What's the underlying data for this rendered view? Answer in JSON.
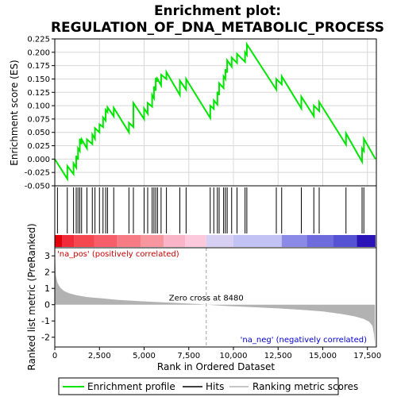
{
  "chart_data": {
    "type": "line",
    "title": "Enrichment plot:\nREGULATION_OF_DNA_METABOLIC_PROCESS",
    "title_lines": [
      "Enrichment plot:",
      "REGULATION_OF_DNA_METABOLIC_PROCESS"
    ],
    "xlabel": "Rank in Ordered Dataset",
    "ylabel_top": "Enrichment score (ES)",
    "ylabel_bottom": "Ranked list metric (PreRanked)",
    "xlim": [
      0,
      18000
    ],
    "x_ticks": [
      0,
      2500,
      5000,
      7500,
      10000,
      12500,
      15000,
      17500
    ],
    "x_tick_labels": [
      "0",
      "2,500",
      "5,000",
      "7,500",
      "10,000",
      "12,500",
      "15,000",
      "17,500"
    ],
    "es_ylim": [
      -0.05,
      0.225
    ],
    "es_ticks": [
      -0.05,
      -0.025,
      0.0,
      0.025,
      0.05,
      0.075,
      0.1,
      0.125,
      0.15,
      0.175,
      0.2,
      0.225
    ],
    "es_tick_labels": [
      "-0.050",
      "-0.025",
      "0.000",
      "0.025",
      "0.050",
      "0.075",
      "0.100",
      "0.125",
      "0.150",
      "0.175",
      "0.200",
      "0.225"
    ],
    "metric_ylim": [
      -2.6,
      3.5
    ],
    "metric_ticks": [
      -2,
      -1,
      0,
      1,
      2,
      3
    ],
    "metric_tick_labels": [
      "-2",
      "-1",
      "0",
      "1",
      "2",
      "3"
    ],
    "zero_cross_rank": 8480,
    "zero_cross_label": "Zero cross at 8480",
    "pos_label": "'na_pos' (positively correlated)",
    "neg_label": "'na_neg' (negatively correlated)",
    "hits": [
      150,
      700,
      1050,
      1200,
      1300,
      1400,
      1500,
      1800,
      2100,
      2250,
      2500,
      2700,
      2850,
      2950,
      3300,
      4150,
      4400,
      5000,
      5200,
      5450,
      5550,
      5650,
      5750,
      5950,
      6250,
      7000,
      7350,
      8700,
      8900,
      9100,
      9200,
      9450,
      9550,
      9650,
      9900,
      10200,
      10650,
      10750,
      12400,
      12700,
      13800,
      14500,
      14800,
      16300,
      17200,
      17300
    ],
    "es_profile": {
      "x": [
        0,
        700,
        700,
        1050,
        1050,
        1200,
        1200,
        1300,
        1300,
        1400,
        1400,
        1500,
        1500,
        1800,
        1800,
        2100,
        2100,
        2250,
        2250,
        2500,
        2500,
        2700,
        2700,
        2850,
        2850,
        2950,
        2950,
        3300,
        3300,
        4150,
        4150,
        4400,
        4400,
        5000,
        5000,
        5200,
        5200,
        5450,
        5450,
        5550,
        5550,
        5650,
        5650,
        5750,
        5750,
        5950,
        5950,
        6250,
        6250,
        7000,
        7000,
        7350,
        7350,
        8700,
        8700,
        8900,
        8900,
        9100,
        9100,
        9200,
        9200,
        9450,
        9450,
        9550,
        9550,
        9650,
        9650,
        9900,
        9900,
        10200,
        10200,
        10650,
        10650,
        10750,
        10750,
        12400,
        12400,
        12700,
        12700,
        13800,
        13800,
        14500,
        14500,
        14800,
        14800,
        16300,
        16300,
        17200,
        17200,
        17300,
        17300,
        17950
      ],
      "y": [
        0.0,
        -0.037,
        -0.013,
        -0.028,
        -0.008,
        -0.016,
        0.006,
        -0.001,
        0.02,
        0.015,
        0.038,
        0.028,
        0.037,
        0.02,
        0.037,
        0.028,
        0.046,
        0.038,
        0.058,
        0.05,
        0.065,
        0.06,
        0.078,
        0.072,
        0.092,
        0.088,
        0.097,
        0.08,
        0.096,
        0.05,
        0.068,
        0.06,
        0.105,
        0.075,
        0.095,
        0.085,
        0.105,
        0.098,
        0.12,
        0.114,
        0.136,
        0.128,
        0.152,
        0.145,
        0.15,
        0.138,
        0.158,
        0.15,
        0.163,
        0.12,
        0.147,
        0.13,
        0.15,
        0.077,
        0.1,
        0.094,
        0.11,
        0.102,
        0.126,
        0.12,
        0.142,
        0.133,
        0.155,
        0.15,
        0.168,
        0.162,
        0.185,
        0.173,
        0.19,
        0.18,
        0.197,
        0.182,
        0.2,
        0.195,
        0.215,
        0.13,
        0.15,
        0.14,
        0.155,
        0.095,
        0.117,
        0.08,
        0.1,
        0.09,
        0.107,
        0.027,
        0.048,
        -0.005,
        0.02,
        0.015,
        0.038,
        0.0
      ]
    },
    "metric_profile": {
      "x": [
        0,
        60,
        150,
        300,
        500,
        800,
        1200,
        1800,
        2500,
        3500,
        5000,
        6500,
        8000,
        8480,
        9500,
        11000,
        12500,
        14000,
        15000,
        16000,
        16800,
        17300,
        17600,
        17780,
        17860,
        17920
      ],
      "y": [
        3.4,
        1.8,
        1.35,
        1.05,
        0.85,
        0.7,
        0.58,
        0.47,
        0.4,
        0.3,
        0.2,
        0.12,
        0.04,
        0.0,
        -0.07,
        -0.15,
        -0.23,
        -0.33,
        -0.42,
        -0.56,
        -0.72,
        -0.88,
        -1.05,
        -1.3,
        -1.8,
        -2.45
      ]
    },
    "band_segments": [
      {
        "from": 0,
        "to": 400,
        "color": "#e0000a"
      },
      {
        "from": 400,
        "to": 1100,
        "color": "#f02a38"
      },
      {
        "from": 1100,
        "to": 2200,
        "color": "#f5474f"
      },
      {
        "from": 2200,
        "to": 3500,
        "color": "#f65f6a"
      },
      {
        "from": 3500,
        "to": 4800,
        "color": "#f77b85"
      },
      {
        "from": 4800,
        "to": 6100,
        "color": "#f896a0"
      },
      {
        "from": 6100,
        "to": 7300,
        "color": "#f9b4c8"
      },
      {
        "from": 7300,
        "to": 8480,
        "color": "#fbc8dc"
      },
      {
        "from": 8480,
        "to": 10000,
        "color": "#d8d0f2"
      },
      {
        "from": 10000,
        "to": 12700,
        "color": "#c2c2f4"
      },
      {
        "from": 12700,
        "to": 14100,
        "color": "#8b8ae6"
      },
      {
        "from": 14100,
        "to": 15600,
        "color": "#6e6cdc"
      },
      {
        "from": 15600,
        "to": 16900,
        "color": "#5553d4"
      },
      {
        "from": 16900,
        "to": 17950,
        "color": "#2a14b8"
      }
    ],
    "colors": {
      "es_line": "#00e600",
      "hit_line": "#000000",
      "metric_fill": "#b2b2b2",
      "zero_line": "#a0a0a0",
      "pos_label": "#cc0000",
      "neg_label": "#0000cc",
      "grid": "#d8d8d8"
    },
    "legend": {
      "position": "bottom",
      "items": [
        {
          "label": "Enrichment profile",
          "color": "#00e600",
          "kind": "line"
        },
        {
          "label": "Hits",
          "color": "#000000",
          "kind": "line"
        },
        {
          "label": "Ranking metric scores",
          "color": "#b2b2b2",
          "kind": "line"
        }
      ]
    }
  }
}
